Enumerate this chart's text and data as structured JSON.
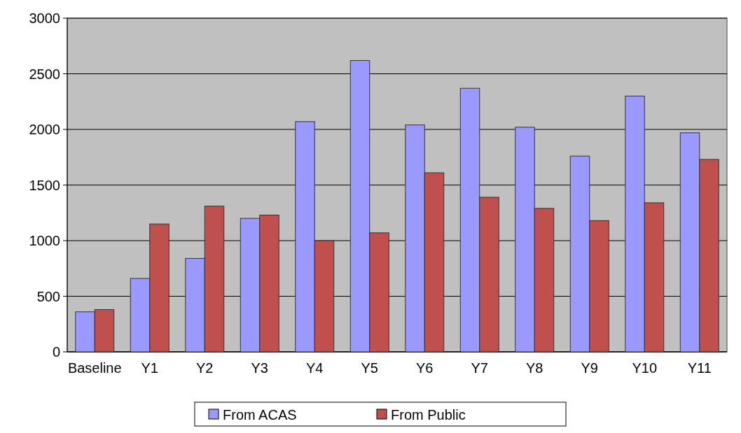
{
  "chart_data": {
    "type": "bar",
    "categories": [
      "Baseline",
      "Y1",
      "Y2",
      "Y3",
      "Y4",
      "Y5",
      "Y6",
      "Y7",
      "Y8",
      "Y9",
      "Y10",
      "Y11"
    ],
    "series": [
      {
        "name": "From ACAS",
        "color": "#9999ff",
        "values": [
          360,
          660,
          840,
          1200,
          2070,
          2620,
          2040,
          2370,
          2020,
          1760,
          2300,
          1970
        ]
      },
      {
        "name": "From Public",
        "color": "#c0504d",
        "values": [
          380,
          1150,
          1310,
          1230,
          1000,
          1070,
          1610,
          1390,
          1290,
          1180,
          1340,
          1730
        ]
      }
    ],
    "ylim": [
      0,
      3000
    ],
    "yticks": [
      0,
      500,
      1000,
      1500,
      2000,
      2500,
      3000
    ],
    "grid": "y",
    "legend": "bottom"
  }
}
